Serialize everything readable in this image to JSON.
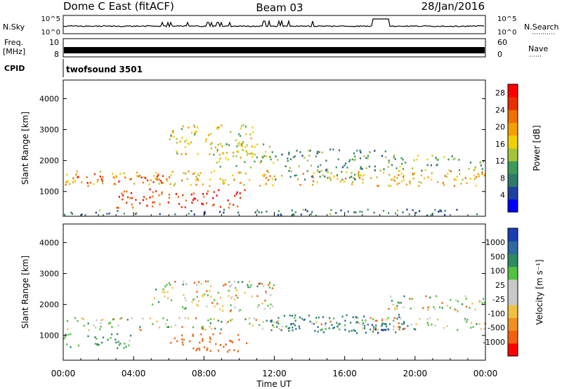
{
  "header": {
    "radar_title": "Dome C East (fitACF)",
    "beam": "Beam 03",
    "date": "28/Jan/2016"
  },
  "strip_panels": {
    "nsky_label": "N.Sky",
    "nsearch_label": "N.Search",
    "nsky_ticks": [
      "10^5",
      "10^0"
    ],
    "nsearch_ticks": [
      "10^5",
      "10^0"
    ],
    "freq_label": "Freq.",
    "freq_unit": "[MHz]",
    "freq_ticks": [
      "10",
      "8"
    ],
    "nave_label": "Nave",
    "nave_ticks": [
      "60",
      "0"
    ],
    "cpid_label": "CPID",
    "cpid_value": "twofsound 3501"
  },
  "colors": {
    "power_scale": [
      "#0000ff",
      "#1e3f9c",
      "#2f7a6b",
      "#3c9a5a",
      "#a6c43a",
      "#f0d000",
      "#f5a000",
      "#f07000",
      "#e83000",
      "#ff0000"
    ],
    "velocity_scale": [
      "#1a3fb0",
      "#2c6aa0",
      "#2e8a60",
      "#52c040",
      "#c8c8c8",
      "#c8c8c8",
      "#f0c040",
      "#f09020",
      "#f06010",
      "#ff0000"
    ]
  },
  "chart_data": [
    {
      "type": "heatmap",
      "name": "power-panel",
      "xlabel": "",
      "ylabel": "Slant Range [km]",
      "x_ticks": [
        "00:00",
        "04:00",
        "08:00",
        "12:00",
        "16:00",
        "20:00",
        "00:00"
      ],
      "y_ticks": [
        1000,
        2000,
        3000,
        4000
      ],
      "ylim": [
        200,
        4600
      ],
      "colorbar_label": "Power [dB]",
      "colorbar_ticks": [
        4,
        8,
        12,
        16,
        20,
        24,
        28
      ],
      "colorbar_range": [
        0,
        30
      ],
      "regions": [
        {
          "t": [
            0.0,
            24.0
          ],
          "r": [
            1200,
            1700
          ],
          "level": 18
        },
        {
          "t": [
            0.0,
            6.0
          ],
          "r": [
            1300,
            1600
          ],
          "level": 24
        },
        {
          "t": [
            3.0,
            10.5
          ],
          "r": [
            500,
            1100
          ],
          "level": 26
        },
        {
          "t": [
            8.5,
            12.0
          ],
          "r": [
            1800,
            2600
          ],
          "level": 14
        },
        {
          "t": [
            6.0,
            11.0
          ],
          "r": [
            2200,
            3200
          ],
          "level": 16
        },
        {
          "t": [
            12.0,
            18.5
          ],
          "r": [
            1400,
            2400
          ],
          "level": 10
        },
        {
          "t": [
            18.5,
            24.0
          ],
          "r": [
            1700,
            2200
          ],
          "level": 12
        },
        {
          "t": [
            0.0,
            24.0
          ],
          "r": [
            250,
            450
          ],
          "level": 8
        }
      ]
    },
    {
      "type": "heatmap",
      "name": "velocity-panel",
      "xlabel": "Time UT",
      "ylabel": "Slant Range [km]",
      "x_ticks": [
        "00:00",
        "04:00",
        "08:00",
        "12:00",
        "16:00",
        "20:00",
        "00:00"
      ],
      "y_ticks": [
        1000,
        2000,
        3000,
        4000
      ],
      "ylim": [
        200,
        4600
      ],
      "colorbar_label": "Velocity [m s⁻¹]",
      "colorbar_ticks": [
        1000,
        500,
        100,
        25,
        -25,
        -100,
        -500,
        -1000
      ],
      "regions": [
        {
          "t": [
            0.0,
            24.0
          ],
          "r": [
            1200,
            1600
          ],
          "level": 0
        },
        {
          "t": [
            5.0,
            12.0
          ],
          "r": [
            1800,
            2800
          ],
          "level": 0
        },
        {
          "t": [
            6.0,
            10.5
          ],
          "r": [
            500,
            1100
          ],
          "level": -300
        },
        {
          "t": [
            0.0,
            4.0
          ],
          "r": [
            600,
            1100
          ],
          "level": 150
        },
        {
          "t": [
            11.5,
            20.0
          ],
          "r": [
            1100,
            1700
          ],
          "level": 250
        },
        {
          "t": [
            17.0,
            18.5
          ],
          "r": [
            1100,
            1500
          ],
          "level": 800
        },
        {
          "t": [
            18.0,
            24.0
          ],
          "r": [
            1800,
            2300
          ],
          "level": 0
        }
      ]
    }
  ]
}
